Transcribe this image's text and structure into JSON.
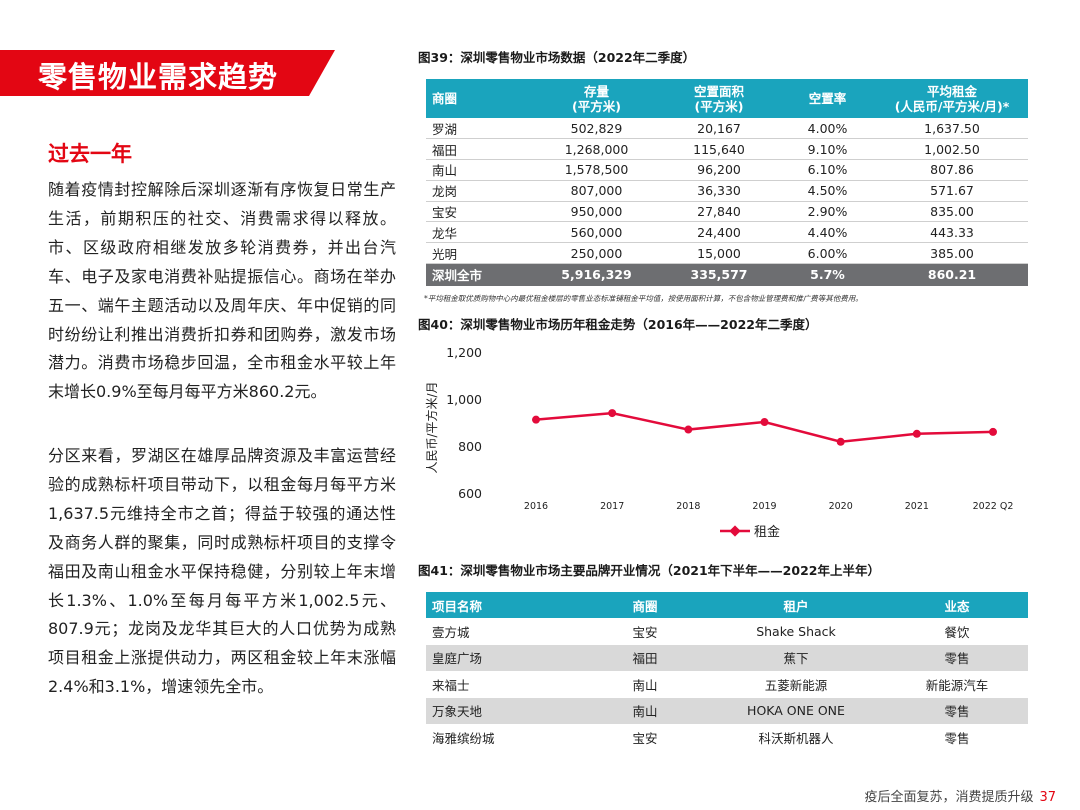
{
  "banner": {
    "title": "零售物业需求趋势"
  },
  "section_title": "过去一年",
  "paragraphs": [
    "随着疫情封控解除后深圳逐渐有序恢复日常生产生活，前期积压的社交、消费需求得以释放。市、区级政府相继发放多轮消费券，并出台汽车、电子及家电消费补贴提振信心。商场在举办五一、端午主题活动以及周年庆、年中促销的同时纷纷让利推出消费折扣券和团购券，激发市场潜力。消费市场稳步回温，全市租金水平较上年末增长0.9%至每月每平方米860.2元。",
    "分区来看，罗湖区在雄厚品牌资源及丰富运营经验的成熟标杆项目带动下，以租金每月每平方米1,637.5元维持全市之首；得益于较强的通达性及商务人群的聚集，同时成熟标杆项目的支撑令福田及南山租金水平保持稳健，分别较上年末增长1.3%、1.0%至每月每平方米1,002.5元、807.9元；龙岗及龙华其巨大的人口优势为成熟项目租金上涨提供动力，两区租金较上年末涨幅2.4%和3.1%，增速领先全市。"
  ],
  "fig39": {
    "title": "图39：深圳零售物业市场数据（2022年二季度）",
    "headers": [
      {
        "line1": "商圈",
        "line2": ""
      },
      {
        "line1": "存量",
        "line2": "(平方米)"
      },
      {
        "line1": "空置面积",
        "line2": "(平方米)"
      },
      {
        "line1": "空置率",
        "line2": ""
      },
      {
        "line1": "平均租金",
        "line2": "(人民币/平方米/月)*"
      }
    ],
    "rows": [
      [
        "罗湖",
        "502,829",
        "20,167",
        "4.00%",
        "1,637.50"
      ],
      [
        "福田",
        "1,268,000",
        "115,640",
        "9.10%",
        "1,002.50"
      ],
      [
        "南山",
        "1,578,500",
        "96,200",
        "6.10%",
        "807.86"
      ],
      [
        "龙岗",
        "807,000",
        "36,330",
        "4.50%",
        "571.67"
      ],
      [
        "宝安",
        "950,000",
        "27,840",
        "2.90%",
        "835.00"
      ],
      [
        "龙华",
        "560,000",
        "24,400",
        "4.40%",
        "443.33"
      ],
      [
        "光明",
        "250,000",
        "15,000",
        "6.00%",
        "385.00"
      ]
    ],
    "total": [
      "深圳全市",
      "5,916,329",
      "335,577",
      "5.7%",
      "860.21"
    ],
    "footnote": "*平均租金取优质购物中心内最优租金楼层的零售业态标准铺租金平均值，按使用面积计算，不包含物业管理费和推广费等其他费用。"
  },
  "fig40": {
    "title": "图40：深圳零售物业市场历年租金走势（2016年——2022年二季度）"
  },
  "chart_data": {
    "type": "line",
    "title": "",
    "ylabel": "人民币/平方米/月",
    "xlabel": "",
    "categories": [
      "2016",
      "2017",
      "2018",
      "2019",
      "2020",
      "2021",
      "2022 Q2"
    ],
    "series": [
      {
        "name": "租金",
        "values": [
          912,
          940,
          870,
          902,
          818,
          852,
          860
        ],
        "color": "#e30b3b"
      }
    ],
    "ylim": [
      600,
      1200
    ],
    "yticks": [
      "600",
      "800",
      "1,000",
      "1,200"
    ],
    "grid": false,
    "legend": "bottom"
  },
  "fig41": {
    "title": "图41：深圳零售物业市场主要品牌开业情况（2021年下半年——2022年上半年）",
    "headers": [
      "项目名称",
      "商圈",
      "租户",
      "业态"
    ],
    "rows": [
      [
        "壹方城",
        "宝安",
        "Shake Shack",
        "餐饮"
      ],
      [
        "皇庭广场",
        "福田",
        "蕉下",
        "零售"
      ],
      [
        "来福士",
        "南山",
        "五菱新能源",
        "新能源汽车"
      ],
      [
        "万象天地",
        "南山",
        "HOKA ONE ONE",
        "零售"
      ],
      [
        "海雅缤纷城",
        "宝安",
        "科沃斯机器人",
        "零售"
      ]
    ]
  },
  "footer": {
    "text": "疫后全面复苏，消费提质升级",
    "page": "37"
  },
  "colors": {
    "accent": "#e30613",
    "table_header": "#1aa4bd",
    "total_row": "#6d6e71",
    "line": "#e30b3b"
  }
}
